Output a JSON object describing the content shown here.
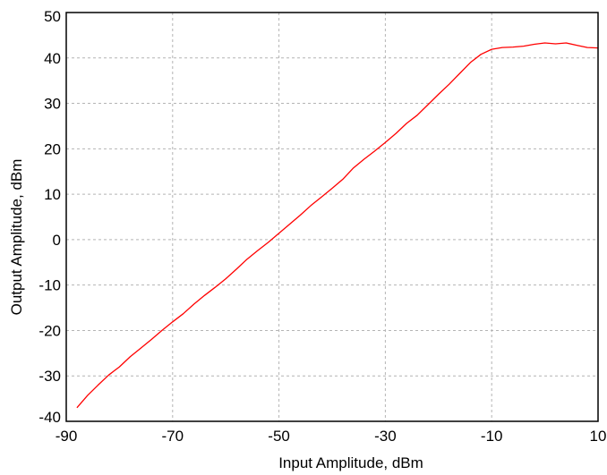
{
  "chart_data": {
    "type": "line",
    "title": "",
    "xlabel": "Input Amplitude, dBm",
    "ylabel": "Output Amplitude, dBm",
    "xlim": [
      -90,
      10
    ],
    "ylim": [
      -40,
      50
    ],
    "x_ticks": [
      -90,
      -70,
      -50,
      -30,
      -10,
      10
    ],
    "x_tick_labels": [
      "-90",
      "-70",
      "-50",
      "-30",
      "-10",
      "10"
    ],
    "y_ticks": [
      -40,
      -30,
      -20,
      -10,
      0,
      10,
      20,
      30,
      40,
      50
    ],
    "y_tick_labels": [
      "-40",
      "-30",
      "-20",
      "-10",
      "0",
      "10",
      "20",
      "30",
      "40",
      "50"
    ],
    "grid": true,
    "colors": {
      "series": "#ff0000",
      "grid": "#b4b4b4",
      "axes": "#000000"
    },
    "series": [
      {
        "x": [
          -88,
          -86,
          -84,
          -82,
          -80,
          -78,
          -76,
          -74,
          -72,
          -70,
          -68,
          -66,
          -64,
          -62,
          -60,
          -58,
          -56,
          -54,
          -52,
          -50,
          -48,
          -46,
          -44,
          -42,
          -40,
          -38,
          -36,
          -34,
          -32,
          -30,
          -28,
          -26,
          -24,
          -22,
          -20,
          -18,
          -16,
          -14,
          -12,
          -10,
          -8,
          -6,
          -4,
          -2,
          0,
          2,
          4,
          6,
          8,
          10
        ],
        "y": [
          -37,
          -34.3,
          -32,
          -29.8,
          -28,
          -25.8,
          -23.9,
          -22,
          -20,
          -18.1,
          -16.3,
          -14.2,
          -12.3,
          -10.5,
          -8.6,
          -6.5,
          -4.3,
          -2.4,
          -0.6,
          1.4,
          3.4,
          5.4,
          7.5,
          9.4,
          11.3,
          13.3,
          15.8,
          17.7,
          19.5,
          21.4,
          23.4,
          25.6,
          27.4,
          29.7,
          32,
          34.2,
          36.6,
          39,
          40.8,
          41.9,
          42.3,
          42.4,
          42.6,
          43,
          43.3,
          43.1,
          43.3,
          42.8,
          42.3,
          42.2
        ]
      }
    ]
  }
}
